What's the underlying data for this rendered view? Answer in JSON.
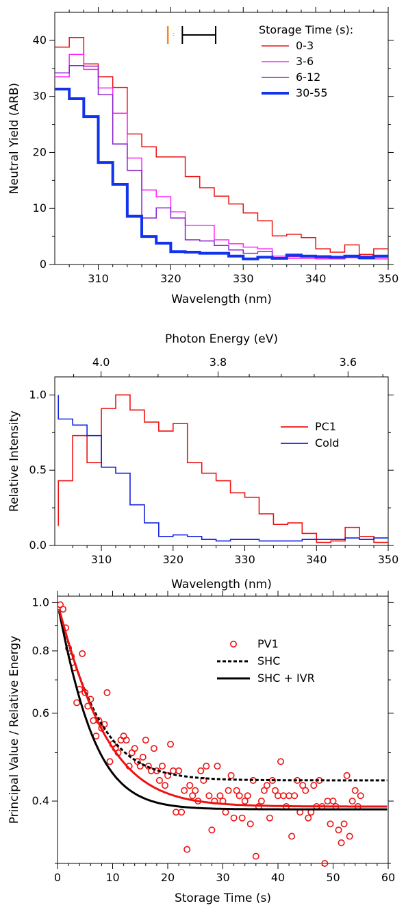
{
  "chart_data": [
    {
      "type": "line",
      "step": true,
      "xlabel": "Wavelength (nm)",
      "ylabel": "Neutral Yield (ARB)",
      "xlim": [
        304,
        350
      ],
      "ylim": [
        0,
        45
      ],
      "xticks": [
        310,
        320,
        330,
        340,
        350
      ],
      "yticks": [
        0,
        10,
        20,
        30,
        40
      ],
      "legend_title": "Storage Time (s):",
      "legend_position": "top-right",
      "bin_edges": [
        304,
        306,
        308,
        310,
        312,
        314,
        316,
        318,
        320,
        322,
        324,
        326,
        328,
        330,
        332,
        334,
        336,
        338,
        340,
        342,
        344,
        346,
        348,
        350
      ],
      "series": [
        {
          "name": "0-3",
          "color": "#ee1111",
          "width": 1.5,
          "values": [
            38.8,
            40.5,
            35.8,
            33.5,
            31.6,
            23.3,
            21.0,
            19.2,
            19.2,
            15.7,
            13.7,
            12.2,
            10.8,
            9.2,
            7.8,
            5.1,
            5.4,
            4.8,
            2.8,
            2.2,
            3.5,
            1.8,
            2.8
          ]
        },
        {
          "name": "3-6",
          "color": "#ff22ff",
          "width": 1.5,
          "values": [
            33.5,
            37.5,
            34.8,
            31.5,
            27.0,
            19.0,
            13.3,
            12.1,
            9.4,
            7.0,
            7.0,
            4.4,
            3.7,
            3.1,
            2.8,
            1.5,
            1.1,
            1.1,
            1.0,
            1.0,
            1.2,
            1.0,
            1.0
          ]
        },
        {
          "name": "6-12",
          "color": "#8822cc",
          "width": 1.5,
          "values": [
            34.2,
            35.5,
            35.4,
            30.3,
            21.5,
            16.8,
            8.3,
            10.1,
            8.3,
            4.4,
            4.2,
            3.4,
            2.6,
            2.0,
            2.3,
            1.2,
            1.4,
            1.5,
            1.2,
            1.4,
            1.3,
            1.5,
            1.3
          ]
        },
        {
          "name": "30-55",
          "color": "#1133ee",
          "width": 4,
          "values": [
            31.3,
            29.6,
            26.4,
            18.2,
            14.3,
            8.6,
            5.0,
            3.8,
            2.3,
            2.2,
            2.0,
            2.0,
            1.5,
            1.0,
            1.3,
            1.1,
            1.7,
            1.5,
            1.4,
            1.3,
            1.5,
            1.2,
            1.5
          ]
        }
      ]
    },
    {
      "type": "line",
      "step": true,
      "xlabel": "Wavelength (nm)",
      "ylabel": "Relative Intensity",
      "top_axis_label": "Photon Energy (eV)",
      "top_ticks": [
        4.0,
        3.8,
        3.6
      ],
      "xlim": [
        303.5,
        350
      ],
      "ylim": [
        0,
        1.12
      ],
      "xticks": [
        310,
        320,
        330,
        340,
        350
      ],
      "yticks": [
        0.0,
        0.5,
        1.0
      ],
      "legend_position": "middle-right",
      "bin_edges": [
        304,
        306,
        308,
        310,
        312,
        314,
        316,
        318,
        320,
        322,
        324,
        326,
        328,
        330,
        332,
        334,
        336,
        338,
        340,
        342,
        344,
        346,
        348,
        350
      ],
      "series": [
        {
          "name": "PC1",
          "color": "#ee1111",
          "values": [
            0.43,
            0.73,
            0.55,
            0.91,
            1.0,
            0.9,
            0.82,
            0.76,
            0.81,
            0.55,
            0.48,
            0.43,
            0.35,
            0.32,
            0.21,
            0.14,
            0.15,
            0.08,
            0.02,
            0.03,
            0.12,
            0.06,
            0.02
          ],
          "first_point": [
            304,
            0.13
          ]
        },
        {
          "name": "Cold",
          "color": "#1122dd",
          "values": [
            0.84,
            0.8,
            0.73,
            0.52,
            0.48,
            0.27,
            0.15,
            0.06,
            0.07,
            0.06,
            0.04,
            0.03,
            0.04,
            0.04,
            0.03,
            0.03,
            0.03,
            0.04,
            0.04,
            0.04,
            0.05,
            0.04,
            0.05
          ],
          "first_point": [
            304,
            1.0
          ]
        }
      ]
    },
    {
      "type": "scatter",
      "xlabel": "Storage Time (s)",
      "ylabel": "Principal Value / Relative Energy",
      "xlim": [
        0,
        60
      ],
      "ylim": [
        0.3,
        1.03
      ],
      "ylog": true,
      "xticks": [
        0,
        10,
        20,
        30,
        40,
        50,
        60
      ],
      "yticks": [
        0.4,
        0.6,
        0.8,
        1.0
      ],
      "legend_position": "top-right",
      "series": [
        {
          "name": "PV1",
          "kind": "points",
          "color": "#ee1111",
          "x": [
            0.5,
            1.0,
            1.5,
            2.0,
            2.5,
            3.0,
            3.5,
            4.0,
            4.5,
            5.0,
            5.5,
            6.0,
            6.5,
            7.0,
            7.5,
            8.0,
            8.5,
            9.0,
            9.5,
            10.0,
            10.5,
            11.0,
            11.5,
            12.0,
            12.5,
            13.0,
            13.5,
            14.0,
            14.5,
            15.0,
            15.5,
            16.0,
            16.5,
            17.0,
            17.5,
            18.0,
            18.5,
            19.0,
            19.5,
            20.0,
            20.5,
            21.0,
            21.5,
            22.0,
            22.5,
            23.0,
            23.5,
            24.0,
            24.5,
            25.0,
            25.5,
            26.0,
            26.5,
            27.0,
            27.5,
            28.0,
            28.5,
            29.0,
            29.5,
            30.0,
            30.5,
            31.0,
            31.5,
            32.0,
            32.5,
            33.0,
            33.5,
            34.0,
            34.5,
            35.0,
            35.5,
            36.0,
            36.5,
            37.0,
            37.5,
            38.0,
            38.5,
            39.0,
            39.5,
            40.0,
            40.5,
            41.0,
            41.5,
            42.0,
            42.5,
            43.0,
            43.5,
            44.0,
            44.5,
            45.0,
            45.5,
            46.0,
            46.5,
            47.0,
            47.5,
            48.0,
            48.5,
            49.0,
            49.5,
            50.0,
            50.5,
            51.0,
            51.5,
            52.0,
            52.5,
            53.0,
            53.5,
            54.0,
            54.5,
            55.0
          ],
          "y": [
            0.99,
            0.97,
            0.89,
            0.81,
            0.78,
            0.74,
            0.63,
            0.67,
            0.79,
            0.66,
            0.62,
            0.64,
            0.58,
            0.54,
            0.58,
            0.56,
            0.57,
            0.66,
            0.48,
            0.52,
            0.51,
            0.5,
            0.53,
            0.54,
            0.53,
            0.47,
            0.5,
            0.51,
            0.48,
            0.47,
            0.49,
            0.53,
            0.47,
            0.46,
            0.51,
            0.46,
            0.44,
            0.47,
            0.43,
            0.45,
            0.52,
            0.46,
            0.38,
            0.46,
            0.38,
            0.42,
            0.32,
            0.43,
            0.41,
            0.42,
            0.4,
            0.46,
            0.44,
            0.47,
            0.41,
            0.35,
            0.4,
            0.47,
            0.41,
            0.4,
            0.38,
            0.42,
            0.45,
            0.37,
            0.42,
            0.41,
            0.37,
            0.4,
            0.41,
            0.36,
            0.44,
            0.31,
            0.39,
            0.4,
            0.42,
            0.43,
            0.37,
            0.44,
            0.42,
            0.41,
            0.48,
            0.41,
            0.39,
            0.41,
            0.34,
            0.41,
            0.44,
            0.38,
            0.43,
            0.42,
            0.37,
            0.38,
            0.43,
            0.39,
            0.44,
            0.39,
            0.3,
            0.4,
            0.36,
            0.4,
            0.39,
            0.35,
            0.33,
            0.36,
            0.45,
            0.34,
            0.4,
            0.42,
            0.39,
            0.41
          ]
        },
        {
          "name": "SHC",
          "kind": "curve",
          "color": "#000000",
          "dash": "5,3",
          "a": 0.44,
          "b": 0.56,
          "tau": 5.5
        },
        {
          "name": "SHC + IVR",
          "kind": "curve",
          "color": "#000000",
          "dash": "",
          "a": 0.385,
          "b": 0.615,
          "tau": 4.6
        },
        {
          "name": "",
          "kind": "curve",
          "color": "#ee1111",
          "dash": "",
          "a": 0.39,
          "b": 0.61,
          "tau": 6.2,
          "legend": false
        }
      ]
    }
  ]
}
